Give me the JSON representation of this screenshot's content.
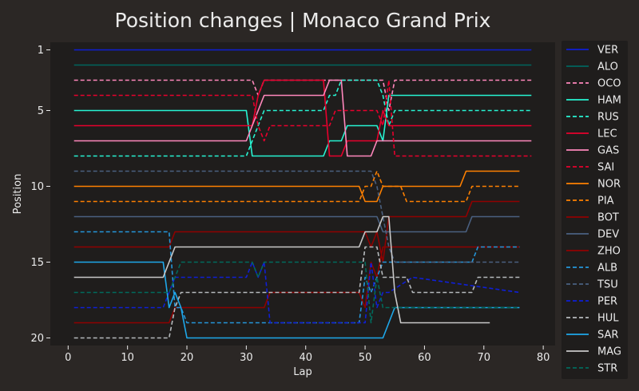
{
  "chart_data": {
    "type": "line",
    "title": "Position changes | Monaco Grand Prix",
    "xlabel": "Lap",
    "ylabel": "Position",
    "xlim": [
      -3,
      82
    ],
    "ylim": [
      20.5,
      0.5
    ],
    "y_inverted": true,
    "xticks": [
      0,
      10,
      20,
      30,
      40,
      50,
      60,
      70,
      80
    ],
    "yticks": [
      1,
      5,
      10,
      15,
      20
    ],
    "legend_position": "right-outside",
    "grid": false,
    "colors": {
      "figure_bg": "#2b2725",
      "axes_bg": "#1f1d1c",
      "text": "#ebebeb",
      "legend_bg": "#1f1d1c"
    },
    "series": [
      {
        "name": "VER",
        "color": "#0f1fd6",
        "dash": false,
        "points": [
          [
            1,
            1
          ],
          [
            78,
            1
          ]
        ]
      },
      {
        "name": "ALO",
        "color": "#00665e",
        "dash": false,
        "points": [
          [
            1,
            2
          ],
          [
            78,
            2
          ]
        ]
      },
      {
        "name": "OCO",
        "color": "#ff87bc",
        "dash": true,
        "points": [
          [
            1,
            3
          ],
          [
            31,
            3
          ],
          [
            32,
            4
          ],
          [
            33,
            3
          ],
          [
            53,
            3
          ],
          [
            54,
            5
          ],
          [
            55,
            3
          ],
          [
            78,
            3
          ]
        ]
      },
      {
        "name": "HAM",
        "color": "#27f4d2",
        "dash": false,
        "points": [
          [
            1,
            5
          ],
          [
            30,
            5
          ],
          [
            31,
            8
          ],
          [
            43,
            8
          ],
          [
            44,
            7
          ],
          [
            46,
            7
          ],
          [
            47,
            6
          ],
          [
            52,
            6
          ],
          [
            53,
            7
          ],
          [
            54,
            4
          ],
          [
            78,
            4
          ]
        ]
      },
      {
        "name": "RUS",
        "color": "#27f4d2",
        "dash": true,
        "points": [
          [
            1,
            8
          ],
          [
            30,
            8
          ],
          [
            31,
            7
          ],
          [
            32,
            6
          ],
          [
            33,
            5
          ],
          [
            43,
            5
          ],
          [
            44,
            4
          ],
          [
            45,
            4
          ],
          [
            46,
            3
          ],
          [
            52,
            3
          ],
          [
            53,
            4
          ],
          [
            54,
            6
          ],
          [
            55,
            5
          ],
          [
            78,
            5
          ]
        ]
      },
      {
        "name": "LEC",
        "color": "#e8002d",
        "dash": false,
        "points": [
          [
            1,
            6
          ],
          [
            31,
            6
          ],
          [
            32,
            4
          ],
          [
            33,
            3
          ],
          [
            43,
            3
          ],
          [
            44,
            8
          ],
          [
            46,
            8
          ],
          [
            47,
            7
          ],
          [
            52,
            7
          ],
          [
            53,
            5
          ],
          [
            54,
            6
          ],
          [
            78,
            6
          ]
        ]
      },
      {
        "name": "GAS",
        "color": "#ff87bc",
        "dash": false,
        "points": [
          [
            1,
            7
          ],
          [
            30,
            7
          ],
          [
            31,
            6
          ],
          [
            32,
            5
          ],
          [
            33,
            4
          ],
          [
            43,
            4
          ],
          [
            44,
            3
          ],
          [
            46,
            3
          ],
          [
            47,
            8
          ],
          [
            51,
            8
          ],
          [
            52,
            7
          ],
          [
            78,
            7
          ]
        ]
      },
      {
        "name": "SAI",
        "color": "#e8002d",
        "dash": true,
        "points": [
          [
            1,
            4
          ],
          [
            31,
            4
          ],
          [
            32,
            6
          ],
          [
            33,
            7
          ],
          [
            34,
            6
          ],
          [
            43,
            6
          ],
          [
            44,
            6
          ],
          [
            45,
            5
          ],
          [
            52,
            5
          ],
          [
            53,
            6
          ],
          [
            54,
            3
          ],
          [
            55,
            8
          ],
          [
            78,
            8
          ]
        ]
      },
      {
        "name": "NOR",
        "color": "#ff8000",
        "dash": false,
        "points": [
          [
            1,
            10
          ],
          [
            49,
            10
          ],
          [
            50,
            11
          ],
          [
            52,
            11
          ],
          [
            53,
            10
          ],
          [
            66,
            10
          ],
          [
            67,
            9
          ],
          [
            76,
            9
          ]
        ]
      },
      {
        "name": "PIA",
        "color": "#ff8000",
        "dash": true,
        "points": [
          [
            1,
            11
          ],
          [
            49,
            11
          ],
          [
            50,
            10
          ],
          [
            51,
            10
          ],
          [
            52,
            9
          ],
          [
            53,
            10
          ],
          [
            56,
            10
          ],
          [
            57,
            11
          ],
          [
            67,
            11
          ],
          [
            68,
            10
          ],
          [
            76,
            10
          ]
        ]
      },
      {
        "name": "BOT",
        "color": "#900000",
        "dash": false,
        "points": [
          [
            1,
            14
          ],
          [
            17,
            14
          ],
          [
            18,
            13
          ],
          [
            50,
            13
          ],
          [
            51,
            14
          ],
          [
            52,
            13
          ],
          [
            53,
            15
          ],
          [
            54,
            12
          ],
          [
            67,
            12
          ],
          [
            68,
            11
          ],
          [
            76,
            11
          ]
        ]
      },
      {
        "name": "DEV",
        "color": "#4a6080",
        "dash": false,
        "points": [
          [
            1,
            12
          ],
          [
            52,
            12
          ],
          [
            53,
            13
          ],
          [
            67,
            13
          ],
          [
            68,
            12
          ],
          [
            76,
            12
          ]
        ]
      },
      {
        "name": "ZHO",
        "color": "#900000",
        "dash": false,
        "points": [
          [
            1,
            19
          ],
          [
            16,
            19
          ],
          [
            17,
            19
          ],
          [
            18,
            18
          ],
          [
            33,
            18
          ],
          [
            34,
            17
          ],
          [
            49,
            17
          ],
          [
            50,
            18
          ],
          [
            51,
            15
          ],
          [
            52,
            16
          ],
          [
            53,
            14
          ],
          [
            76,
            14
          ]
        ]
      },
      {
        "name": "ALB",
        "color": "#2596d9",
        "dash": true,
        "points": [
          [
            1,
            13
          ],
          [
            17,
            13
          ],
          [
            18,
            18
          ],
          [
            19,
            18
          ],
          [
            20,
            19
          ],
          [
            33,
            19
          ],
          [
            34,
            19
          ],
          [
            49,
            19
          ],
          [
            50,
            16
          ],
          [
            51,
            17
          ],
          [
            52,
            16
          ],
          [
            53,
            15
          ],
          [
            68,
            15
          ],
          [
            69,
            14
          ],
          [
            76,
            14
          ]
        ]
      },
      {
        "name": "TSU",
        "color": "#4a6080",
        "dash": true,
        "points": [
          [
            1,
            9
          ],
          [
            51,
            9
          ],
          [
            52,
            10
          ],
          [
            53,
            12
          ],
          [
            54,
            14
          ],
          [
            55,
            15
          ],
          [
            76,
            15
          ]
        ]
      },
      {
        "name": "PER",
        "color": "#0f1fd6",
        "dash": true,
        "points": [
          [
            1,
            18
          ],
          [
            16,
            18
          ],
          [
            17,
            17
          ],
          [
            18,
            16
          ],
          [
            30,
            16
          ],
          [
            31,
            15
          ],
          [
            32,
            16
          ],
          [
            33,
            15
          ],
          [
            34,
            19
          ],
          [
            50,
            19
          ],
          [
            51,
            15
          ],
          [
            52,
            18
          ],
          [
            53,
            17
          ],
          [
            54,
            17
          ],
          [
            58,
            16
          ],
          [
            76,
            17
          ]
        ]
      },
      {
        "name": "HUL",
        "color": "#b6babd",
        "dash": true,
        "points": [
          [
            1,
            20
          ],
          [
            17,
            20
          ],
          [
            18,
            18
          ],
          [
            19,
            17
          ],
          [
            49,
            17
          ],
          [
            50,
            14
          ],
          [
            52,
            14
          ],
          [
            53,
            16
          ],
          [
            56,
            16
          ],
          [
            57,
            16
          ],
          [
            58,
            17
          ],
          [
            68,
            17
          ],
          [
            69,
            16
          ],
          [
            76,
            16
          ]
        ]
      },
      {
        "name": "SAR",
        "color": "#1ea8ea",
        "dash": false,
        "points": [
          [
            1,
            15
          ],
          [
            16,
            15
          ],
          [
            17,
            18
          ],
          [
            18,
            17
          ],
          [
            19,
            18
          ],
          [
            20,
            20
          ],
          [
            53,
            20
          ],
          [
            54,
            19
          ],
          [
            55,
            18
          ],
          [
            76,
            18
          ]
        ]
      },
      {
        "name": "MAG",
        "color": "#c8c8c8",
        "dash": false,
        "points": [
          [
            1,
            16
          ],
          [
            16,
            16
          ],
          [
            18,
            14
          ],
          [
            49,
            14
          ],
          [
            50,
            13
          ],
          [
            52,
            13
          ],
          [
            53,
            12
          ],
          [
            54,
            12
          ],
          [
            55,
            17
          ],
          [
            56,
            19
          ],
          [
            71,
            19
          ]
        ]
      },
      {
        "name": "STR",
        "color": "#006a5c",
        "dash": true,
        "points": [
          [
            1,
            17
          ],
          [
            17,
            17
          ],
          [
            18,
            16
          ],
          [
            19,
            15
          ],
          [
            31,
            15
          ],
          [
            32,
            16
          ],
          [
            33,
            15
          ],
          [
            50,
            15
          ],
          [
            51,
            19
          ],
          [
            52,
            16
          ],
          [
            53,
            18
          ],
          [
            76,
            18
          ]
        ]
      }
    ]
  }
}
